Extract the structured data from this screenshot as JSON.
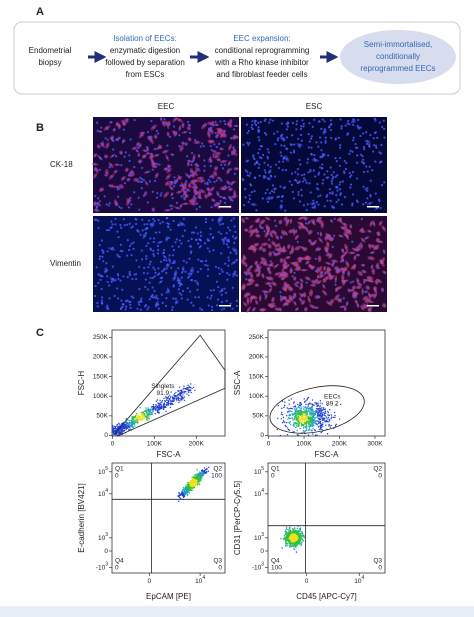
{
  "panel_a": {
    "label": "A",
    "steps": [
      {
        "text": [
          "Endometrial",
          "biopsy"
        ]
      },
      {
        "heading": "Isolation of EECs:",
        "text": [
          "enzymatic digestion",
          "followed by separation",
          "from ESCs"
        ]
      },
      {
        "heading": "EEC expansion:",
        "text": [
          "conditional reprogramming",
          "with a Rho kinase inhibitor",
          "and fibroblast feeder cells"
        ]
      },
      {
        "text": [
          "Semi-immortalised,",
          "conditionally",
          "reprogrammed EECs"
        ]
      }
    ]
  },
  "panel_b": {
    "label": "B",
    "columns": [
      "EEC",
      "ESC"
    ],
    "rows": [
      "CK-18",
      "Vimentin"
    ]
  },
  "panel_c": {
    "label": "C",
    "plots": [
      {
        "y_label": "FSC-H",
        "x_label": "FSC-A",
        "yticks": [
          "0",
          "50K",
          "100K",
          "150K",
          "200K",
          "250K"
        ],
        "xticks": [
          "0",
          "100K",
          "200K"
        ],
        "gate": {
          "name": "Singlets",
          "value": "91.9"
        }
      },
      {
        "y_label": "SSC-A",
        "x_label": "FSC-A",
        "yticks": [
          "0",
          "50K",
          "100K",
          "150K",
          "200K",
          "250K"
        ],
        "xticks": [
          "0",
          "100K",
          "200K",
          "300K"
        ],
        "gate": {
          "name": "EECs",
          "value": "89.2"
        }
      },
      {
        "y_label": "E-cadherin [BV421]",
        "x_label": "EpCAM [PE]",
        "yticks": [
          {
            "base": "10",
            "exp": "5"
          },
          {
            "base": "10",
            "exp": "4"
          },
          {
            "base": "10",
            "exp": "3"
          },
          {
            "base": "0"
          },
          {
            "base": "-10",
            "exp": "3"
          }
        ],
        "xticks": [
          {
            "base": "0"
          },
          {
            "base": "10",
            "exp": "4"
          }
        ],
        "quadrants": [
          {
            "name": "Q1",
            "value": "0"
          },
          {
            "name": "Q2",
            "value": "100"
          },
          {
            "name": "Q3",
            "value": "0"
          },
          {
            "name": "Q4",
            "value": "0"
          }
        ]
      },
      {
        "y_label": "CD31 [PerCP-Cy5.5]",
        "x_label": "CD45 [APC-Cy7]",
        "yticks": [
          {
            "base": "10",
            "exp": "5"
          },
          {
            "base": "10",
            "exp": "4"
          },
          {
            "base": "10",
            "exp": "3"
          },
          {
            "base": "0"
          },
          {
            "base": "-10",
            "exp": "3"
          }
        ],
        "xticks": [
          {
            "base": "0"
          },
          {
            "base": "10",
            "exp": "4"
          }
        ],
        "quadrants": [
          {
            "name": "Q1",
            "value": "0"
          },
          {
            "name": "Q2",
            "value": "0"
          },
          {
            "name": "Q3",
            "value": "0"
          },
          {
            "name": "Q4",
            "value": "100"
          }
        ]
      }
    ]
  }
}
